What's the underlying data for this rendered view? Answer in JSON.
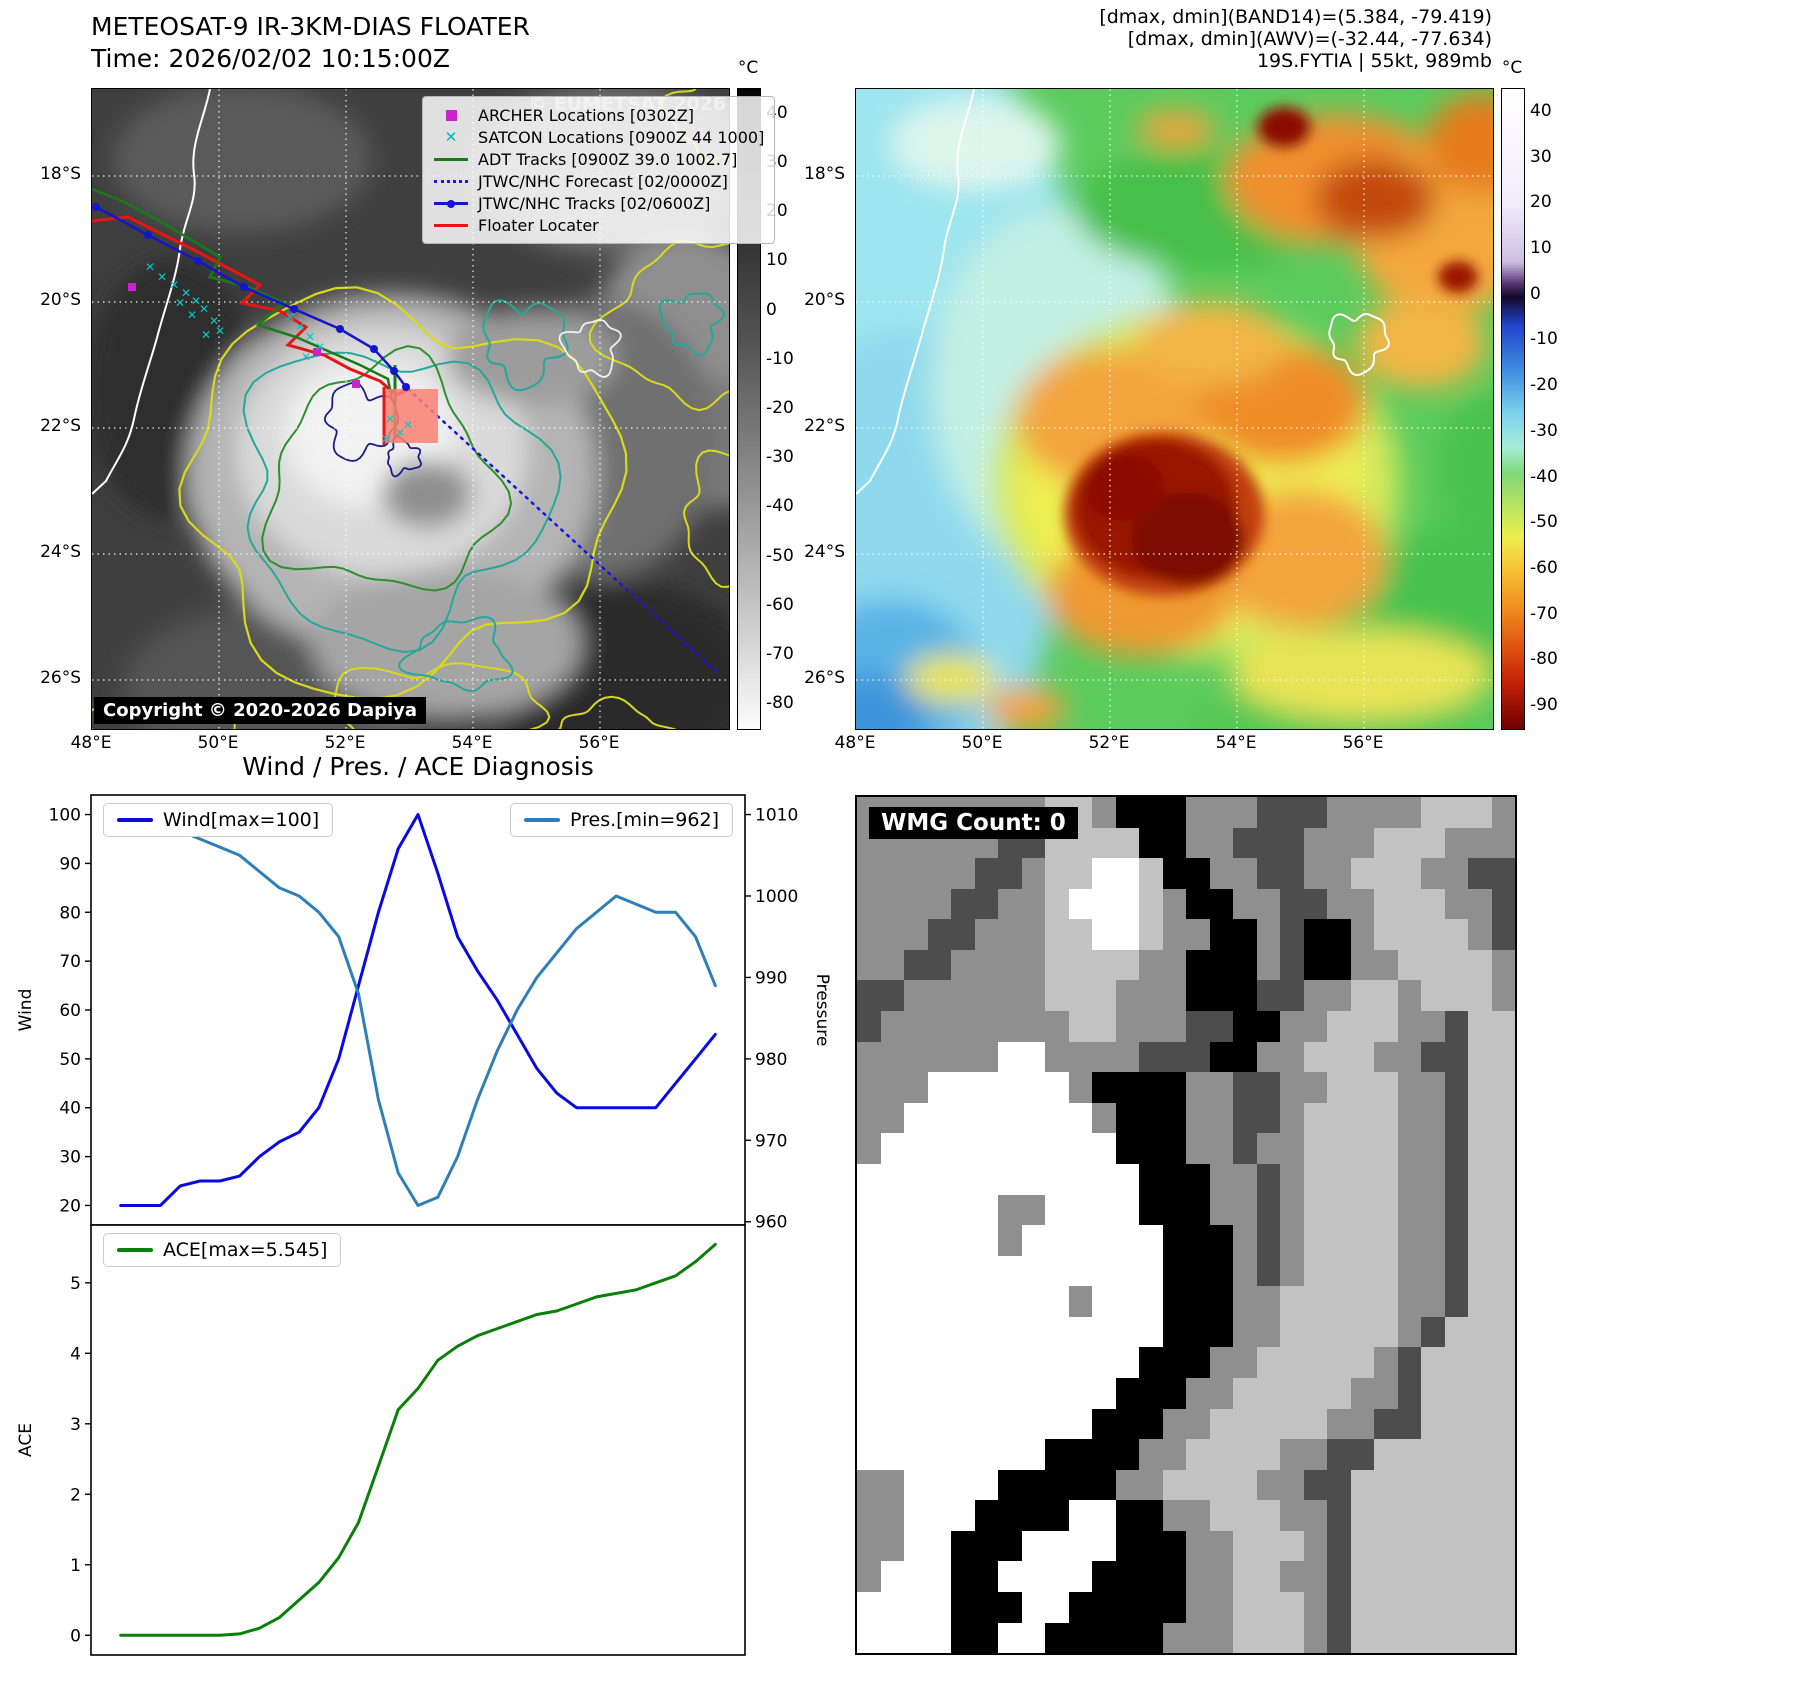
{
  "ir_panel": {
    "title": "METEOSAT-9 IR-3KM-DIAS FLOATER",
    "time": "Time: 2026/02/02 10:15:00Z",
    "watermark": "© EUMETSAT 2026",
    "copyright": "Copyright © 2020-2026 Dapiya",
    "colorbar": {
      "unit": "°C",
      "ticks": [
        "40",
        "30",
        "20",
        "10",
        "0",
        "-10",
        "-20",
        "-30",
        "-40",
        "-50",
        "-60",
        "-70",
        "-80"
      ]
    },
    "lat_ticks": [
      "18°S",
      "20°S",
      "22°S",
      "24°S",
      "26°S"
    ],
    "lon_ticks": [
      "48°E",
      "50°E",
      "52°E",
      "54°E",
      "56°E"
    ],
    "legend": [
      {
        "label": "ARCHER Locations [0302Z]",
        "color": "#cc22cc",
        "marker": "square"
      },
      {
        "label": "SATCON Locations [0900Z 44 1000]",
        "color": "#00b8b8",
        "marker": "x"
      },
      {
        "label": "ADT Tracks [0900Z 39.0 1002.7]",
        "color": "#1a7a1a",
        "marker": "line"
      },
      {
        "label": "JTWC/NHC Forecast [02/0000Z]",
        "color": "#1515e6",
        "marker": "dotted"
      },
      {
        "label": "JTWC/NHC Tracks [02/0600Z]",
        "color": "#1515cc",
        "marker": "line-dot"
      },
      {
        "label": "Floater Locater",
        "color": "#e61515",
        "marker": "line"
      }
    ]
  },
  "awv_panel": {
    "header": [
      "[dmax, dmin](BAND14)=(5.384, -79.419)",
      "[dmax, dmin](AWV)=(-32.44, -77.634)",
      "19S.FYTIA | 55kt, 989mb"
    ],
    "colorbar": {
      "unit": "°C",
      "ticks": [
        "40",
        "30",
        "20",
        "10",
        "0",
        "-10",
        "-20",
        "-30",
        "-40",
        "-50",
        "-60",
        "-70",
        "-80",
        "-90"
      ]
    },
    "lat_ticks": [
      "18°S",
      "20°S",
      "22°S",
      "24°S",
      "26°S"
    ],
    "lon_ticks": [
      "48°E",
      "50°E",
      "52°E",
      "54°E",
      "56°E"
    ]
  },
  "chart_data": [
    {
      "type": "line",
      "title": "Wind / Pres. / ACE Diagnosis",
      "xlim": [
        -1.5,
        31.5
      ],
      "x": [
        0,
        1,
        2,
        3,
        4,
        5,
        6,
        7,
        8,
        9,
        10,
        11,
        12,
        13,
        14,
        15,
        16,
        17,
        18,
        19,
        20,
        21,
        22,
        23,
        24,
        25,
        26,
        27,
        28,
        29,
        30
      ],
      "series": [
        {
          "name": "Wind[max=100]",
          "color": "#0a0ae0",
          "axis": "left",
          "values": [
            20,
            20,
            20,
            24,
            25,
            25,
            26,
            30,
            33,
            35,
            40,
            50,
            65,
            80,
            93,
            100,
            88,
            75,
            68,
            62,
            55,
            48,
            43,
            40,
            40,
            40,
            40,
            40,
            45,
            50,
            55
          ]
        },
        {
          "name": "Pres.[min=962]",
          "color": "#2e7fb8",
          "axis": "right",
          "values": [
            1010,
            1010,
            1009,
            1008,
            1007,
            1006,
            1005,
            1003,
            1001,
            1000,
            998,
            995,
            988,
            975,
            966,
            962,
            963,
            968,
            975,
            981,
            986,
            990,
            993,
            996,
            998,
            1000,
            999,
            998,
            998,
            995,
            989
          ]
        }
      ],
      "left_axis": {
        "label": "Wind",
        "ticks": [
          100,
          90,
          80,
          70,
          60,
          50,
          40,
          30,
          20
        ],
        "lim": [
          16,
          104
        ]
      },
      "right_axis": {
        "label": "Pressure",
        "ticks": [
          1010,
          1000,
          990,
          980,
          970,
          960
        ],
        "lim": [
          959.6,
          1012.4
        ]
      },
      "grid": false,
      "legend_position": "top-left and top-right"
    },
    {
      "type": "line",
      "xlim": [
        -1.5,
        31.5
      ],
      "x": [
        0,
        1,
        2,
        3,
        4,
        5,
        6,
        7,
        8,
        9,
        10,
        11,
        12,
        13,
        14,
        15,
        16,
        17,
        18,
        19,
        20,
        21,
        22,
        23,
        24,
        25,
        26,
        27,
        28,
        29,
        30
      ],
      "series": [
        {
          "name": "ACE[max=5.545]",
          "color": "#0a7f0a",
          "axis": "left",
          "values": [
            0,
            0,
            0,
            0,
            0,
            0,
            0.02,
            0.1,
            0.25,
            0.5,
            0.75,
            1.1,
            1.6,
            2.4,
            3.2,
            3.5,
            3.9,
            4.1,
            4.25,
            4.35,
            4.45,
            4.55,
            4.6,
            4.7,
            4.8,
            4.85,
            4.9,
            5.0,
            5.1,
            5.3,
            5.545
          ]
        }
      ],
      "left_axis": {
        "label": "ACE",
        "ticks": [
          5,
          4,
          3,
          2,
          1,
          0
        ],
        "lim": [
          -0.28,
          5.82
        ]
      },
      "grid": false,
      "legend_position": "top-left"
    }
  ],
  "wmg_panel": {
    "label": "WMG Count: 0",
    "palette": {
      "K": "#000000",
      "D": "#4d4d4d",
      "M": "#8f8f8f",
      "L": "#c2c2c2",
      "W": "#ffffff"
    },
    "rows": [
      "MMMMMMMMLLMKKKMMMDDDMMMMLLLM",
      "MMMMMMDDLLLLKKMMDDDMMMLLLMMM",
      "MMMMMDDMLLWWLKKMMDDMMLLLMMDD",
      "MMMMDDMMLWWWLMKKMMDDMMLLLMMD",
      "MMMDDMMMLLWWLMMKKMDKKMLLLLMD",
      "MMDDMMMMLLLLMMKKKMDKKMMLLLLM",
      "DDMMMMMMLLLMMMKKKDDMMLLMLLLM",
      "DMMMMMMMMLLMMMDDKKMMLLLMMDLL",
      "MMMMMMWWMMMMDDDKKMMLLLMMDDLL",
      "MMMWWWWWWMKKKKMMDDMMLLLMMDLL",
      "MMWWWWWWWWMKKKMMDDMLLLLMMDLL",
      "MWWWWWWWWWWKKKMMDMMLLLLMMDLL",
      "WWWWWWWWWWWWKKKMMDMLLLLMMDLL",
      "WWWWWWMMWWWWKKKMMDMLLLLMMDLL",
      "WWWWWWMWWWWWWKKKMDMLLLLMMDLL",
      "WWWWWWWWWWWWWKKKMDMLLLLMMDLL",
      "WWWWWWWWWMWWWKKKMMLLLLLMMDLL",
      "WWWWWWWWWWWWWKKKMMLLLLLMDLLL",
      "WWWWWWWWWWWWKKKMMLLLLLMDLLLL",
      "WWWWWWWWWWWKKKMMLLLLLMMDLLLL",
      "WWWWWWWWWWKKKMMLLLLLMMDDLLLL",
      "WWWWWWWWKKKKMMLLLLMMDDLLLLLL",
      "MMWWWWKKKKKMMLLLLMMDDLLLLLLL",
      "MMWWWKKKKWWKKMMLLLMMDLLLLLLL",
      "MMWWKKKWWWWKKKMMLLLMDLLLLLLL",
      "MWWWKKWWWWKKKKMMLLMMDLLLLLLL",
      "WWWWKKKWWKKKKKMMLLLMDLLLLLLL",
      "WWWWKKWWKKKKKMMMLLLMDLLLLLLL"
    ]
  }
}
